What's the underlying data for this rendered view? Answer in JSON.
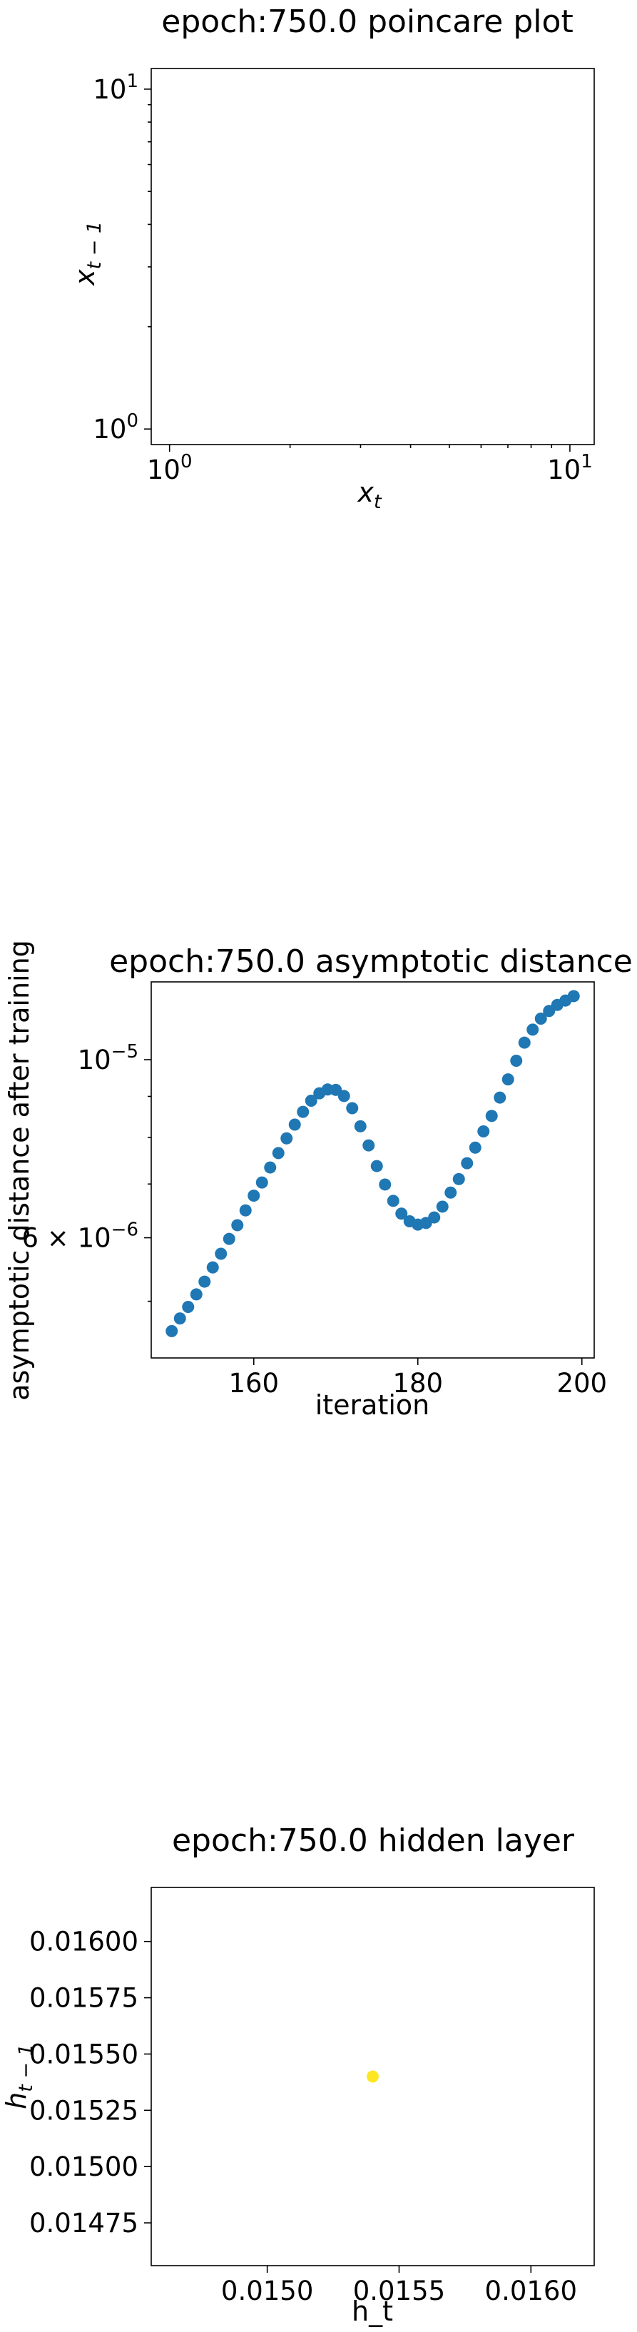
{
  "chart_data": [
    {
      "type": "scatter",
      "title": "epoch:750.0 poincare plot",
      "xlabel": "x",
      "xlabel_sub": "t",
      "ylabel": "x",
      "ylabel_sub": "t − 1",
      "xscale": "log",
      "yscale": "log",
      "xlim": [
        0.9,
        11.5
      ],
      "ylim": [
        0.9,
        11.5
      ],
      "x_ticks": [
        {
          "value": 1,
          "base": "10",
          "exp": "0"
        },
        {
          "value": 10,
          "base": "10",
          "exp": "1"
        }
      ],
      "y_ticks": [
        {
          "value": 1,
          "base": "10",
          "exp": "0"
        },
        {
          "value": 10,
          "base": "10",
          "exp": "1"
        }
      ],
      "points": [],
      "grid": false
    },
    {
      "type": "scatter",
      "title": "epoch:750.0 asymptotic distance",
      "xlabel": "iteration",
      "ylabel": "asymptotic distance after training",
      "xscale": "linear",
      "yscale": "log",
      "xlim": [
        147.5,
        201.5
      ],
      "ylim": [
        4.25e-06,
        1.25e-05
      ],
      "x_ticks": [
        {
          "value": 160,
          "label": "160"
        },
        {
          "value": 180,
          "label": "180"
        },
        {
          "value": 200,
          "label": "200"
        }
      ],
      "y_ticks": [
        {
          "value": 1e-05,
          "base": "10",
          "exp": "−5"
        },
        {
          "value": 6e-06,
          "prefix": "6 × ",
          "base": "10",
          "exp": "−6"
        }
      ],
      "color": "#1f77b4",
      "x": [
        150,
        151,
        152,
        153,
        154,
        155,
        156,
        157,
        158,
        159,
        160,
        161,
        162,
        163,
        164,
        165,
        166,
        167,
        168,
        169,
        170,
        171,
        172,
        173,
        174,
        175,
        176,
        177,
        178,
        179,
        180,
        181,
        182,
        183,
        184,
        185,
        186,
        187,
        188,
        189,
        190,
        191,
        192,
        193,
        194,
        195,
        196,
        197,
        198,
        199
      ],
      "y": [
        4.59e-06,
        4.76e-06,
        4.92e-06,
        5.1e-06,
        5.29e-06,
        5.51e-06,
        5.73e-06,
        5.98e-06,
        6.22e-06,
        6.49e-06,
        6.77e-06,
        7.03e-06,
        7.34e-06,
        7.65e-06,
        7.98e-06,
        8.3e-06,
        8.61e-06,
        8.89e-06,
        9.08e-06,
        9.18e-06,
        9.17e-06,
        9.01e-06,
        8.7e-06,
        8.26e-06,
        7.82e-06,
        7.37e-06,
        6.99e-06,
        6.67e-06,
        6.43e-06,
        6.29e-06,
        6.23e-06,
        6.26e-06,
        6.36e-06,
        6.56e-06,
        6.83e-06,
        7.1e-06,
        7.43e-06,
        7.77e-06,
        8.14e-06,
        8.51e-06,
        8.97e-06,
        9.45e-06,
        9.97e-06,
        1.05e-05,
        1.09e-05,
        1.125e-05,
        1.15e-05,
        1.17e-05,
        1.185e-05,
        1.2e-05
      ],
      "grid": false
    },
    {
      "type": "scatter",
      "title": "epoch:750.0 hidden layer",
      "xlabel": "h_t",
      "ylabel": "h",
      "ylabel_sub": "t − 1",
      "xscale": "linear",
      "yscale": "linear",
      "xlim": [
        0.01456,
        0.01624
      ],
      "ylim": [
        0.01456,
        0.01624
      ],
      "x_ticks": [
        {
          "value": 0.015,
          "label": "0.0150"
        },
        {
          "value": 0.0155,
          "label": "0.0155"
        },
        {
          "value": 0.016,
          "label": "0.0160"
        }
      ],
      "y_ticks": [
        {
          "value": 0.01475,
          "label": "0.01475"
        },
        {
          "value": 0.015,
          "label": "0.01500"
        },
        {
          "value": 0.01525,
          "label": "0.01525"
        },
        {
          "value": 0.0155,
          "label": "0.01550"
        },
        {
          "value": 0.01575,
          "label": "0.01575"
        },
        {
          "value": 0.016,
          "label": "0.01600"
        }
      ],
      "color": "#fde725",
      "points": [
        {
          "x": 0.0154,
          "y": 0.0154
        }
      ],
      "grid": false
    }
  ]
}
